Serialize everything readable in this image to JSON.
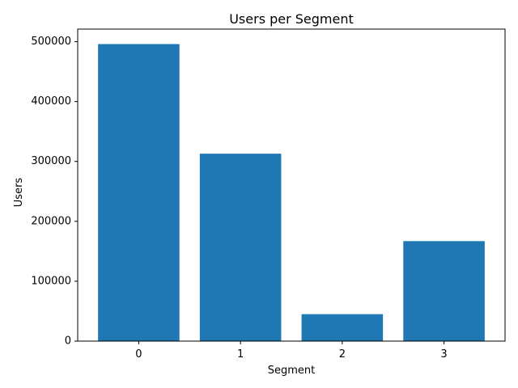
{
  "chart_data": {
    "type": "bar",
    "title": "Users per Segment",
    "xlabel": "Segment",
    "ylabel": "Users",
    "categories": [
      "0",
      "1",
      "2",
      "3"
    ],
    "values": [
      496000,
      313000,
      45000,
      167000
    ],
    "ylim": [
      0,
      521000
    ],
    "yticks": [
      0,
      100000,
      200000,
      300000,
      400000,
      500000
    ],
    "bar_color": "#1f77b4",
    "grid": false,
    "legend": "none"
  }
}
